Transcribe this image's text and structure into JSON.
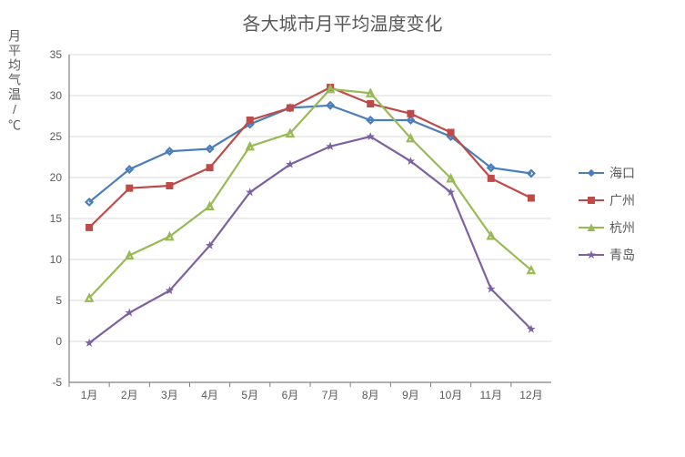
{
  "chart": {
    "type": "line",
    "title": "各大城市月平均温度变化",
    "title_fontsize": 20,
    "title_color": "#595959",
    "ylabel": "月平均气温/℃",
    "ylabel_fontsize": 14,
    "xlabel": "",
    "background_color": "#ffffff",
    "grid_color": "#d9d9d9",
    "axis_color": "#808080",
    "tick_fontsize": 12,
    "tick_color": "#595959",
    "ylim": [
      -5,
      35
    ],
    "ytick_step": 5,
    "categories": [
      "1月",
      "2月",
      "3月",
      "4月",
      "5月",
      "6月",
      "7月",
      "8月",
      "9月",
      "10月",
      "11月",
      "12月"
    ],
    "series": [
      {
        "name": "海口",
        "color": "#4a7ebb",
        "marker": "diamond",
        "values": [
          17.0,
          21.0,
          23.2,
          23.5,
          26.5,
          28.5,
          28.8,
          27.0,
          27.0,
          25.0,
          21.2,
          20.5
        ]
      },
      {
        "name": "广州",
        "color": "#be4b48",
        "marker": "square",
        "values": [
          13.9,
          18.7,
          19.0,
          21.2,
          27.0,
          28.5,
          31.0,
          29.0,
          27.8,
          25.5,
          19.9,
          17.5
        ]
      },
      {
        "name": "杭州",
        "color": "#98b954",
        "marker": "triangle",
        "values": [
          5.3,
          10.5,
          12.8,
          16.5,
          23.8,
          25.4,
          30.8,
          30.3,
          24.8,
          19.9,
          12.9,
          8.7
        ]
      },
      {
        "name": "青岛",
        "color": "#7d60a0",
        "marker": "star",
        "values": [
          -0.2,
          3.5,
          6.2,
          11.7,
          18.2,
          21.6,
          23.8,
          25.0,
          22.0,
          18.2,
          6.4,
          1.5
        ]
      }
    ],
    "line_width": 2.2,
    "marker_size": 7,
    "legend_position": "right"
  }
}
